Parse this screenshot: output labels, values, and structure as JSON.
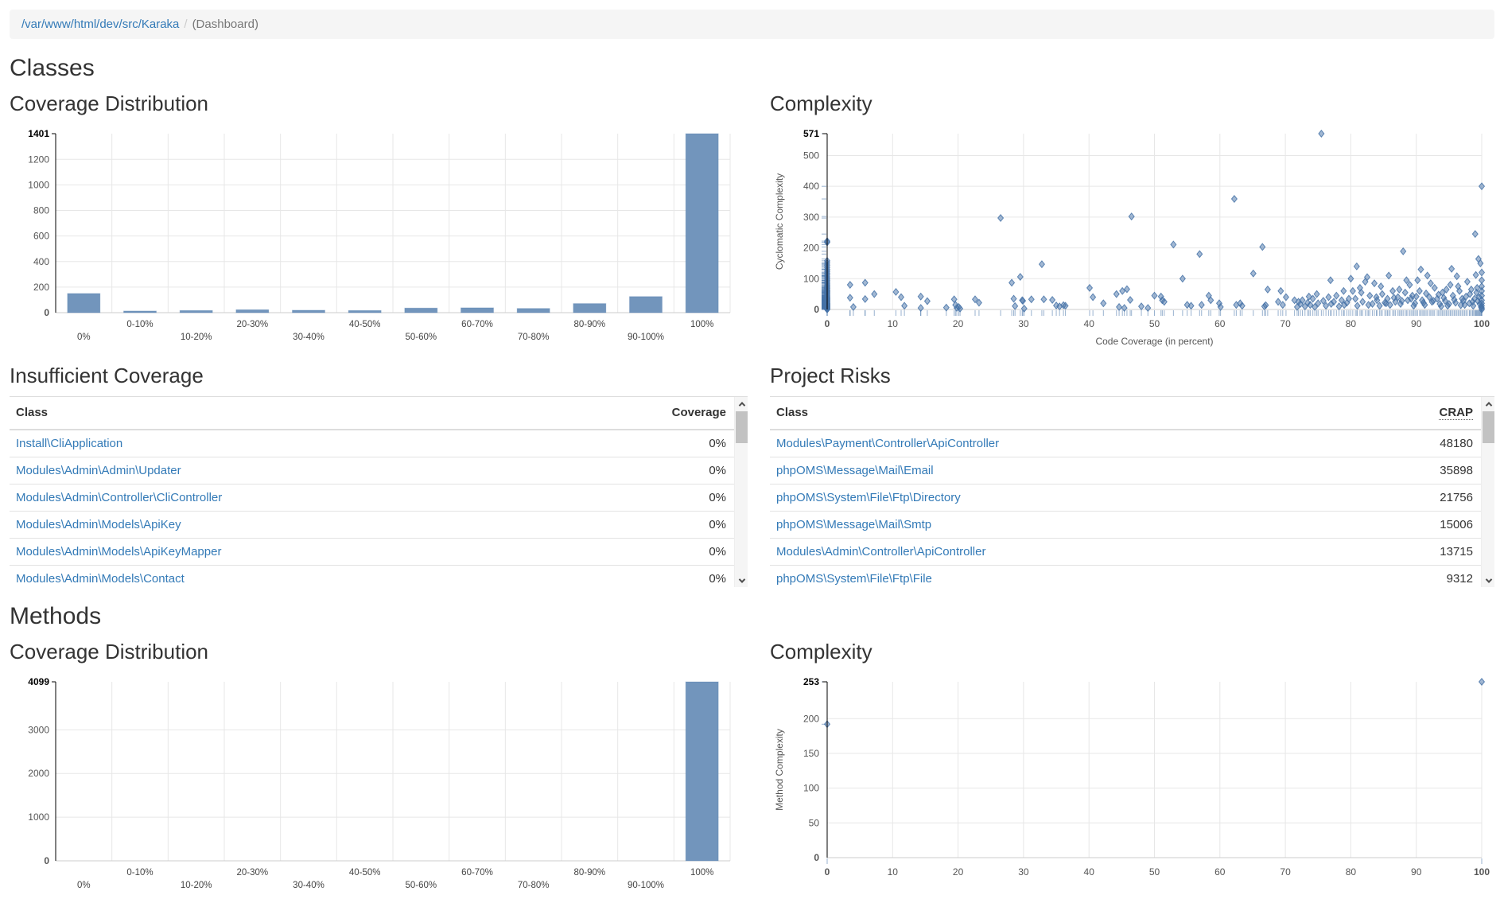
{
  "colors": {
    "accent": "#4572a7",
    "bar_fill": "#7295bc",
    "grid": "#e7e7e7",
    "axis_dark": "#000000",
    "axis_light": "#cccccc",
    "link": "#337ab7",
    "breadcrumb_bg": "#f5f5f5"
  },
  "breadcrumb": {
    "path": "/var/www/html/dev/src/Karaka",
    "separator": "/",
    "current": "(Dashboard)"
  },
  "sections": {
    "classes": {
      "title": "Classes",
      "coverage_title": "Coverage Distribution",
      "complexity_title": "Complexity",
      "insufficient_title": "Insufficient Coverage",
      "risks_title": "Project Risks"
    },
    "methods": {
      "title": "Methods",
      "coverage_title": "Coverage Distribution",
      "complexity_title": "Complexity"
    }
  },
  "tables": {
    "insufficient": {
      "columns": [
        "Class",
        "Coverage"
      ],
      "rows": [
        [
          "Install\\CliApplication",
          "0%"
        ],
        [
          "Modules\\Admin\\Admin\\Updater",
          "0%"
        ],
        [
          "Modules\\Admin\\Controller\\CliController",
          "0%"
        ],
        [
          "Modules\\Admin\\Models\\ApiKey",
          "0%"
        ],
        [
          "Modules\\Admin\\Models\\ApiKeyMapper",
          "0%"
        ],
        [
          "Modules\\Admin\\Models\\Contact",
          "0%"
        ]
      ]
    },
    "risks": {
      "columns": [
        "Class",
        "CRAP"
      ],
      "abbr_col": 1,
      "rows": [
        [
          "Modules\\Payment\\Controller\\ApiController",
          "48180"
        ],
        [
          "phpOMS\\Message\\Mail\\Email",
          "35898"
        ],
        [
          "phpOMS\\System\\File\\Ftp\\Directory",
          "21756"
        ],
        [
          "phpOMS\\Message\\Mail\\Smtp",
          "15006"
        ],
        [
          "Modules\\Admin\\Controller\\ApiController",
          "13715"
        ],
        [
          "phpOMS\\System\\File\\Ftp\\File",
          "9312"
        ]
      ]
    }
  },
  "chart_data": [
    {
      "id": "classes-coverage",
      "type": "bar",
      "title": "Coverage Distribution (Classes)",
      "categories": [
        "0%",
        "0-10%",
        "10-20%",
        "20-30%",
        "30-40%",
        "40-50%",
        "50-60%",
        "60-70%",
        "70-80%",
        "80-90%",
        "90-100%",
        "100%"
      ],
      "values": [
        150,
        13,
        17,
        23,
        19,
        17,
        36,
        38,
        33,
        71,
        126,
        1401
      ],
      "xlabel": "",
      "ylabel": "",
      "ylim": [
        0,
        1401
      ],
      "yticks": [
        0,
        200,
        400,
        600,
        800,
        1000,
        1200
      ],
      "ymax_label": 1401,
      "grid": true
    },
    {
      "id": "classes-complexity",
      "type": "scatter",
      "title": "Complexity (Classes)",
      "xlabel": "Code Coverage (in percent)",
      "ylabel": "Cyclomatic Complexity",
      "xlim": [
        0,
        100
      ],
      "ylim": [
        0,
        571
      ],
      "xticks": [
        0,
        10,
        20,
        30,
        40,
        50,
        60,
        70,
        80,
        90,
        100
      ],
      "yticks": [
        0,
        100,
        200,
        300,
        400,
        500
      ],
      "ymax_label": 571,
      "grid": true,
      "points": [
        [
          0,
          0
        ],
        [
          0,
          1
        ],
        [
          0,
          2
        ],
        [
          0,
          3
        ],
        [
          0,
          4
        ],
        [
          0,
          5
        ],
        [
          0,
          6
        ],
        [
          0,
          7
        ],
        [
          0,
          8
        ],
        [
          0,
          9
        ],
        [
          0,
          10
        ],
        [
          0,
          11
        ],
        [
          0,
          12
        ],
        [
          0,
          13
        ],
        [
          0,
          14
        ],
        [
          0,
          15
        ],
        [
          0,
          16
        ],
        [
          0,
          17
        ],
        [
          0,
          18
        ],
        [
          0,
          19
        ],
        [
          0,
          20
        ],
        [
          0,
          22
        ],
        [
          0,
          24
        ],
        [
          0,
          26
        ],
        [
          0,
          28
        ],
        [
          0,
          30
        ],
        [
          0,
          32
        ],
        [
          0,
          34
        ],
        [
          0,
          36
        ],
        [
          0,
          38
        ],
        [
          0,
          40
        ],
        [
          0,
          43
        ],
        [
          0,
          46
        ],
        [
          0,
          49
        ],
        [
          0,
          52
        ],
        [
          0,
          55
        ],
        [
          0,
          58
        ],
        [
          0,
          61
        ],
        [
          0,
          64
        ],
        [
          0,
          68
        ],
        [
          0,
          72
        ],
        [
          0,
          76
        ],
        [
          0,
          80
        ],
        [
          0,
          85
        ],
        [
          0,
          90
        ],
        [
          0,
          95
        ],
        [
          0,
          100
        ],
        [
          0,
          106
        ],
        [
          0,
          112
        ],
        [
          0,
          118
        ],
        [
          0,
          124
        ],
        [
          0,
          130
        ],
        [
          0,
          137
        ],
        [
          0,
          144
        ],
        [
          0,
          151
        ],
        [
          0,
          158
        ],
        [
          0,
          218
        ],
        [
          0,
          222
        ],
        [
          3.5,
          80
        ],
        [
          3.5,
          38
        ],
        [
          4,
          8
        ],
        [
          5.8,
          87
        ],
        [
          5.8,
          34
        ],
        [
          7.2,
          50
        ],
        [
          10.5,
          57
        ],
        [
          11.3,
          40
        ],
        [
          11.8,
          12
        ],
        [
          14.3,
          42
        ],
        [
          14.3,
          5
        ],
        [
          15.3,
          27
        ],
        [
          18.2,
          6
        ],
        [
          19.4,
          33
        ],
        [
          19.6,
          15
        ],
        [
          19.8,
          5
        ],
        [
          20.1,
          8
        ],
        [
          20.3,
          3
        ],
        [
          22.6,
          33
        ],
        [
          23.2,
          22
        ],
        [
          26.5,
          297
        ],
        [
          28.2,
          87
        ],
        [
          28.5,
          35
        ],
        [
          28.7,
          11
        ],
        [
          29.5,
          106
        ],
        [
          29.8,
          30
        ],
        [
          29.9,
          28
        ],
        [
          30.1,
          3
        ],
        [
          31.2,
          33
        ],
        [
          32.8,
          147
        ],
        [
          33.1,
          33
        ],
        [
          34.4,
          31
        ],
        [
          35,
          13
        ],
        [
          35.5,
          10
        ],
        [
          36.1,
          14
        ],
        [
          36.4,
          12
        ],
        [
          40.1,
          70
        ],
        [
          40.6,
          40
        ],
        [
          42.2,
          20
        ],
        [
          44.2,
          50
        ],
        [
          44.6,
          8
        ],
        [
          45.1,
          60
        ],
        [
          45.4,
          5
        ],
        [
          45.8,
          66
        ],
        [
          46.3,
          31
        ],
        [
          46.5,
          302
        ],
        [
          48,
          10
        ],
        [
          49,
          5
        ],
        [
          50,
          45
        ],
        [
          51,
          42
        ],
        [
          51.2,
          30
        ],
        [
          51.5,
          25
        ],
        [
          52.9,
          211
        ],
        [
          54.3,
          100
        ],
        [
          55,
          15
        ],
        [
          55.6,
          12
        ],
        [
          56.9,
          180
        ],
        [
          57.2,
          15
        ],
        [
          58.3,
          45
        ],
        [
          58.6,
          30
        ],
        [
          59.9,
          20
        ],
        [
          60.1,
          8
        ],
        [
          62.2,
          359
        ],
        [
          62.5,
          15
        ],
        [
          63.1,
          20
        ],
        [
          63.4,
          12
        ],
        [
          65.1,
          117
        ],
        [
          66.5,
          203
        ],
        [
          66.8,
          10
        ],
        [
          67,
          14
        ],
        [
          67.3,
          65
        ],
        [
          68.9,
          25
        ],
        [
          69.3,
          60
        ],
        [
          69.6,
          15
        ],
        [
          70.1,
          40
        ],
        [
          71.4,
          30
        ],
        [
          71.8,
          8
        ],
        [
          72,
          25
        ],
        [
          72.3,
          18
        ],
        [
          72.6,
          30
        ],
        [
          73,
          10
        ],
        [
          73.4,
          22
        ],
        [
          73.6,
          42
        ],
        [
          73.8,
          15
        ],
        [
          74.2,
          35
        ],
        [
          74.5,
          8
        ],
        [
          74.8,
          50
        ],
        [
          75,
          20
        ],
        [
          75.5,
          571
        ],
        [
          75.8,
          28
        ],
        [
          76.2,
          12
        ],
        [
          76.6,
          40
        ],
        [
          76.9,
          95
        ],
        [
          77,
          18
        ],
        [
          77.4,
          25
        ],
        [
          77.8,
          45
        ],
        [
          78.2,
          10
        ],
        [
          78.6,
          30
        ],
        [
          78.9,
          60
        ],
        [
          79,
          15
        ],
        [
          79.4,
          22
        ],
        [
          79.7,
          35
        ],
        [
          80,
          100
        ],
        [
          80.3,
          60
        ],
        [
          80.7,
          35
        ],
        [
          80.9,
          140
        ],
        [
          81,
          12
        ],
        [
          81.4,
          70
        ],
        [
          81.6,
          55
        ],
        [
          81.8,
          25
        ],
        [
          82.2,
          90
        ],
        [
          82.5,
          105
        ],
        [
          82.7,
          15
        ],
        [
          82.9,
          45
        ],
        [
          83.3,
          18
        ],
        [
          83.6,
          85
        ],
        [
          83.9,
          40
        ],
        [
          84,
          30
        ],
        [
          84.4,
          12
        ],
        [
          84.6,
          75
        ],
        [
          84.8,
          50
        ],
        [
          85.2,
          22
        ],
        [
          85.4,
          20
        ],
        [
          85.6,
          35
        ],
        [
          85.8,
          110
        ],
        [
          86,
          15
        ],
        [
          86.4,
          60
        ],
        [
          86.6,
          38
        ],
        [
          86.8,
          25
        ],
        [
          87.2,
          40
        ],
        [
          87.4,
          65
        ],
        [
          87.6,
          18
        ],
        [
          87.8,
          28
        ],
        [
          88,
          189
        ],
        [
          88.3,
          55
        ],
        [
          88.5,
          95
        ],
        [
          88.7,
          30
        ],
        [
          89,
          80
        ],
        [
          89.2,
          35
        ],
        [
          89.4,
          45
        ],
        [
          89.6,
          12
        ],
        [
          89.8,
          20
        ],
        [
          90,
          42
        ],
        [
          90.2,
          95
        ],
        [
          90.5,
          60
        ],
        [
          90.7,
          130
        ],
        [
          90.9,
          30
        ],
        [
          91.1,
          22
        ],
        [
          91.3,
          15
        ],
        [
          91.5,
          52
        ],
        [
          91.7,
          110
        ],
        [
          92,
          40
        ],
        [
          92.2,
          85
        ],
        [
          92.4,
          25
        ],
        [
          92.6,
          28
        ],
        [
          92.8,
          70
        ],
        [
          93.2,
          35
        ],
        [
          93.4,
          48
        ],
        [
          93.6,
          18
        ],
        [
          93.8,
          10
        ],
        [
          94,
          55
        ],
        [
          94.2,
          38
        ],
        [
          94.4,
          28
        ],
        [
          94.6,
          65
        ],
        [
          94.8,
          12
        ],
        [
          95,
          18
        ],
        [
          95.2,
          80
        ],
        [
          95.4,
          132
        ],
        [
          95.6,
          45
        ],
        [
          95.8,
          32
        ],
        [
          96,
          22
        ],
        [
          96.2,
          108
        ],
        [
          96.4,
          75
        ],
        [
          96.6,
          60
        ],
        [
          96.8,
          14
        ],
        [
          97,
          35
        ],
        [
          97.2,
          28
        ],
        [
          97.4,
          15
        ],
        [
          97.6,
          42
        ],
        [
          97.8,
          90
        ],
        [
          98.1,
          20
        ],
        [
          98.2,
          50
        ],
        [
          98.4,
          65
        ],
        [
          98.6,
          25
        ],
        [
          98.7,
          12
        ],
        [
          98.9,
          35
        ],
        [
          99,
          245
        ],
        [
          99.1,
          112
        ],
        [
          99.2,
          55
        ],
        [
          99.3,
          70
        ],
        [
          99.4,
          28
        ],
        [
          99.5,
          164
        ],
        [
          99.6,
          40
        ],
        [
          99.7,
          18
        ],
        [
          99.8,
          150
        ],
        [
          99.9,
          8
        ],
        [
          100,
          400
        ],
        [
          100,
          120
        ],
        [
          100,
          95
        ],
        [
          100,
          75
        ],
        [
          100,
          60
        ],
        [
          100,
          45
        ],
        [
          100,
          30
        ],
        [
          100,
          20
        ],
        [
          100,
          12
        ],
        [
          100,
          5
        ],
        [
          100,
          0
        ]
      ]
    },
    {
      "id": "methods-coverage",
      "type": "bar",
      "title": "Coverage Distribution (Methods)",
      "categories": [
        "0%",
        "0-10%",
        "10-20%",
        "20-30%",
        "30-40%",
        "40-50%",
        "50-60%",
        "60-70%",
        "70-80%",
        "80-90%",
        "90-100%",
        "100%"
      ],
      "values": [
        0,
        0,
        0,
        0,
        0,
        0,
        0,
        0,
        0,
        0,
        0,
        4099
      ],
      "xlabel": "",
      "ylabel": "",
      "ylim": [
        0,
        4099
      ],
      "yticks": [
        0,
        1000,
        2000,
        3000
      ],
      "ymax_label": 4099,
      "grid": true
    },
    {
      "id": "methods-complexity",
      "type": "scatter",
      "title": "Complexity (Methods)",
      "xlabel": "",
      "ylabel": "Method Complexity",
      "xlim": [
        0,
        100
      ],
      "ylim": [
        0,
        253
      ],
      "xticks": [
        0,
        10,
        20,
        30,
        40,
        50,
        60,
        70,
        80,
        90,
        100
      ],
      "yticks": [
        0,
        50,
        100,
        150,
        200
      ],
      "ymax_label": 253,
      "grid": true,
      "points": [
        [
          0,
          192
        ],
        [
          100,
          253
        ]
      ]
    }
  ]
}
